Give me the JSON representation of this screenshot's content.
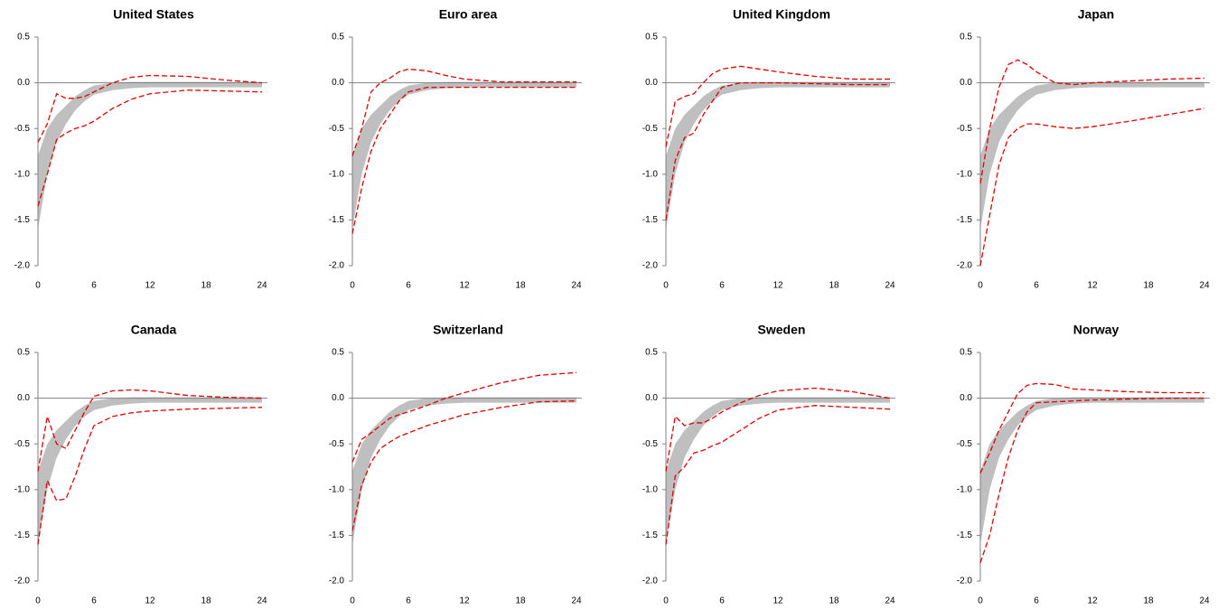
{
  "chart_data": [
    {
      "type": "line",
      "title": "United States",
      "x": [
        0,
        1,
        2,
        3,
        4,
        5,
        6,
        8,
        10,
        12,
        16,
        20,
        24
      ],
      "xlim": [
        0,
        24
      ],
      "xticks": [
        0,
        6,
        12,
        18,
        24
      ],
      "ylim": [
        -2,
        0.5
      ],
      "yticks": [
        {
          "value": -2,
          "label": "-2.0"
        },
        -1.5,
        {
          "value": -1,
          "label": "-1.0"
        },
        -0.5,
        {
          "value": 0,
          "label": "0.0"
        },
        0.5
      ],
      "band": {
        "color": "#bfbfbf",
        "lower": [
          -1.6,
          -1.0,
          -0.65,
          -0.45,
          -0.3,
          -0.2,
          -0.13,
          -0.08,
          -0.06,
          -0.05,
          -0.05,
          -0.05,
          -0.05
        ],
        "upper": [
          -0.8,
          -0.5,
          -0.35,
          -0.25,
          -0.15,
          -0.08,
          -0.03,
          0,
          0.01,
          0.01,
          0.01,
          0.01,
          0.01
        ]
      },
      "series": [
        {
          "color": "#e00000",
          "values": [
            -0.65,
            -0.45,
            -0.12,
            -0.17,
            -0.17,
            -0.15,
            -0.1,
            0.0,
            0.06,
            0.08,
            0.07,
            0.03,
            0.0
          ]
        },
        {
          "color": "#e00000",
          "values": [
            -1.35,
            -1.0,
            -0.62,
            -0.55,
            -0.5,
            -0.47,
            -0.42,
            -0.28,
            -0.18,
            -0.12,
            -0.08,
            -0.09,
            -0.1
          ]
        }
      ]
    },
    {
      "type": "line",
      "title": "Euro area",
      "x": [
        0,
        1,
        2,
        3,
        4,
        5,
        6,
        8,
        10,
        12,
        16,
        20,
        24
      ],
      "xlim": [
        0,
        24
      ],
      "xticks": [
        0,
        6,
        12,
        18,
        24
      ],
      "ylim": [
        -2,
        0.5
      ],
      "yticks": [
        {
          "value": -2,
          "label": "-2.0"
        },
        -1.5,
        {
          "value": -1,
          "label": "-1.0"
        },
        -0.5,
        {
          "value": 0,
          "label": "0.0"
        },
        0.5
      ],
      "band": {
        "color": "#bfbfbf",
        "lower": [
          -1.6,
          -1.0,
          -0.65,
          -0.45,
          -0.3,
          -0.2,
          -0.13,
          -0.08,
          -0.06,
          -0.05,
          -0.05,
          -0.05,
          -0.05
        ],
        "upper": [
          -0.8,
          -0.5,
          -0.35,
          -0.25,
          -0.15,
          -0.08,
          -0.03,
          0,
          0.01,
          0.01,
          0.01,
          0.01,
          0.01
        ]
      },
      "series": [
        {
          "color": "#e00000",
          "values": [
            -0.8,
            -0.5,
            -0.1,
            0.0,
            0.05,
            0.12,
            0.15,
            0.13,
            0.08,
            0.04,
            0.01,
            0.01,
            0.01
          ]
        },
        {
          "color": "#e00000",
          "values": [
            -1.65,
            -1.15,
            -0.75,
            -0.5,
            -0.35,
            -0.2,
            -0.1,
            -0.05,
            -0.05,
            -0.05,
            -0.05,
            -0.05,
            -0.05
          ]
        }
      ]
    },
    {
      "type": "line",
      "title": "United Kingdom",
      "x": [
        0,
        1,
        2,
        3,
        4,
        5,
        6,
        8,
        10,
        12,
        16,
        20,
        24
      ],
      "xlim": [
        0,
        24
      ],
      "xticks": [
        0,
        6,
        12,
        18,
        24
      ],
      "ylim": [
        -2,
        0.5
      ],
      "yticks": [
        {
          "value": -2,
          "label": "-2.0"
        },
        -1.5,
        {
          "value": -1,
          "label": "-1.0"
        },
        -0.5,
        {
          "value": 0,
          "label": "0.0"
        },
        0.5
      ],
      "band": {
        "color": "#bfbfbf",
        "lower": [
          -1.6,
          -1.0,
          -0.65,
          -0.45,
          -0.3,
          -0.2,
          -0.13,
          -0.08,
          -0.06,
          -0.05,
          -0.05,
          -0.05,
          -0.05
        ],
        "upper": [
          -0.8,
          -0.5,
          -0.35,
          -0.25,
          -0.15,
          -0.08,
          -0.03,
          0,
          0.01,
          0.01,
          0.01,
          0.01,
          0.01
        ]
      },
      "series": [
        {
          "color": "#e00000",
          "values": [
            -0.7,
            -0.2,
            -0.15,
            -0.12,
            0.0,
            0.1,
            0.15,
            0.18,
            0.15,
            0.12,
            0.07,
            0.04,
            0.04
          ]
        },
        {
          "color": "#e00000",
          "values": [
            -1.5,
            -0.85,
            -0.6,
            -0.55,
            -0.35,
            -0.2,
            -0.05,
            0.0,
            0.0,
            0.0,
            -0.01,
            -0.02,
            -0.02
          ]
        }
      ]
    },
    {
      "type": "line",
      "title": "Japan",
      "x": [
        0,
        1,
        2,
        3,
        4,
        5,
        6,
        8,
        10,
        12,
        16,
        20,
        24
      ],
      "xlim": [
        0,
        24
      ],
      "xticks": [
        0,
        6,
        12,
        18,
        24
      ],
      "ylim": [
        -2,
        0.5
      ],
      "yticks": [
        {
          "value": -2,
          "label": "-2.0"
        },
        -1.5,
        {
          "value": -1,
          "label": "-1.0"
        },
        -0.5,
        {
          "value": 0,
          "label": "0.0"
        },
        0.5
      ],
      "band": {
        "color": "#bfbfbf",
        "lower": [
          -1.6,
          -1.0,
          -0.65,
          -0.45,
          -0.3,
          -0.2,
          -0.13,
          -0.08,
          -0.06,
          -0.05,
          -0.05,
          -0.05,
          -0.05
        ],
        "upper": [
          -0.8,
          -0.5,
          -0.35,
          -0.25,
          -0.15,
          -0.08,
          -0.03,
          0,
          0.01,
          0.01,
          0.01,
          0.01,
          0.01
        ]
      },
      "series": [
        {
          "color": "#e00000",
          "values": [
            -1.1,
            -0.5,
            -0.05,
            0.2,
            0.25,
            0.2,
            0.12,
            0.0,
            -0.02,
            0.0,
            0.02,
            0.04,
            0.05
          ]
        },
        {
          "color": "#e00000",
          "values": [
            -2.0,
            -1.45,
            -0.9,
            -0.6,
            -0.5,
            -0.45,
            -0.45,
            -0.48,
            -0.5,
            -0.48,
            -0.42,
            -0.35,
            -0.28
          ]
        }
      ]
    },
    {
      "type": "line",
      "title": "Canada",
      "x": [
        0,
        1,
        2,
        3,
        4,
        5,
        6,
        8,
        10,
        12,
        16,
        20,
        24
      ],
      "xlim": [
        0,
        24
      ],
      "xticks": [
        0,
        6,
        12,
        18,
        24
      ],
      "ylim": [
        -2,
        0.5
      ],
      "yticks": [
        {
          "value": -2,
          "label": "-2.0"
        },
        -1.5,
        {
          "value": -1,
          "label": "-1.0"
        },
        -0.5,
        {
          "value": 0,
          "label": "0.0"
        },
        0.5
      ],
      "band": {
        "color": "#bfbfbf",
        "lower": [
          -1.6,
          -1.0,
          -0.65,
          -0.45,
          -0.3,
          -0.2,
          -0.13,
          -0.08,
          -0.06,
          -0.05,
          -0.05,
          -0.05,
          -0.05
        ],
        "upper": [
          -0.8,
          -0.5,
          -0.35,
          -0.25,
          -0.15,
          -0.08,
          -0.03,
          0,
          0.01,
          0.01,
          0.01,
          0.01,
          0.01
        ]
      },
      "series": [
        {
          "color": "#e00000",
          "values": [
            -0.8,
            -0.2,
            -0.5,
            -0.55,
            -0.35,
            -0.15,
            0.02,
            0.08,
            0.09,
            0.08,
            0.03,
            0.01,
            0.0
          ]
        },
        {
          "color": "#e00000",
          "values": [
            -1.6,
            -0.9,
            -1.12,
            -1.1,
            -0.85,
            -0.55,
            -0.3,
            -0.2,
            -0.16,
            -0.14,
            -0.12,
            -0.11,
            -0.1
          ]
        }
      ]
    },
    {
      "type": "line",
      "title": "Switzerland",
      "x": [
        0,
        1,
        2,
        3,
        4,
        5,
        6,
        8,
        10,
        12,
        16,
        20,
        24
      ],
      "xlim": [
        0,
        24
      ],
      "xticks": [
        0,
        6,
        12,
        18,
        24
      ],
      "ylim": [
        -2,
        0.5
      ],
      "yticks": [
        {
          "value": -2,
          "label": "-2.0"
        },
        -1.5,
        {
          "value": -1,
          "label": "-1.0"
        },
        -0.5,
        {
          "value": 0,
          "label": "0.0"
        },
        0.5
      ],
      "band": {
        "color": "#bfbfbf",
        "lower": [
          -1.6,
          -1.0,
          -0.65,
          -0.45,
          -0.3,
          -0.2,
          -0.13,
          -0.08,
          -0.06,
          -0.05,
          -0.05,
          -0.05,
          -0.05
        ],
        "upper": [
          -0.8,
          -0.5,
          -0.35,
          -0.25,
          -0.15,
          -0.08,
          -0.03,
          0,
          0.01,
          0.01,
          0.01,
          0.01,
          0.01
        ]
      },
      "series": [
        {
          "color": "#e00000",
          "values": [
            -0.7,
            -0.45,
            -0.38,
            -0.3,
            -0.22,
            -0.18,
            -0.15,
            -0.08,
            0.0,
            0.06,
            0.17,
            0.25,
            0.28
          ]
        },
        {
          "color": "#e00000",
          "values": [
            -1.45,
            -0.95,
            -0.7,
            -0.55,
            -0.48,
            -0.42,
            -0.38,
            -0.3,
            -0.24,
            -0.18,
            -0.1,
            -0.04,
            -0.03
          ]
        }
      ]
    },
    {
      "type": "line",
      "title": "Sweden",
      "x": [
        0,
        1,
        2,
        3,
        4,
        5,
        6,
        8,
        10,
        12,
        16,
        20,
        24
      ],
      "xlim": [
        0,
        24
      ],
      "xticks": [
        0,
        6,
        12,
        18,
        24
      ],
      "ylim": [
        -2,
        0.5
      ],
      "yticks": [
        {
          "value": -2,
          "label": "-2.0"
        },
        -1.5,
        {
          "value": -1,
          "label": "-1.0"
        },
        -0.5,
        {
          "value": 0,
          "label": "0.0"
        },
        0.5
      ],
      "band": {
        "color": "#bfbfbf",
        "lower": [
          -1.6,
          -1.0,
          -0.65,
          -0.45,
          -0.3,
          -0.2,
          -0.13,
          -0.08,
          -0.06,
          -0.05,
          -0.05,
          -0.05,
          -0.05
        ],
        "upper": [
          -0.8,
          -0.5,
          -0.35,
          -0.25,
          -0.15,
          -0.08,
          -0.03,
          0,
          0.01,
          0.01,
          0.01,
          0.01,
          0.01
        ]
      },
      "series": [
        {
          "color": "#e00000",
          "values": [
            -0.8,
            -0.2,
            -0.3,
            -0.27,
            -0.27,
            -0.22,
            -0.15,
            -0.05,
            0.03,
            0.08,
            0.11,
            0.07,
            0.0
          ]
        },
        {
          "color": "#e00000",
          "values": [
            -1.6,
            -0.85,
            -0.75,
            -0.6,
            -0.57,
            -0.52,
            -0.48,
            -0.35,
            -0.22,
            -0.13,
            -0.08,
            -0.1,
            -0.12
          ]
        }
      ]
    },
    {
      "type": "line",
      "title": "Norway",
      "x": [
        0,
        1,
        2,
        3,
        4,
        5,
        6,
        8,
        10,
        12,
        16,
        20,
        24
      ],
      "xlim": [
        0,
        24
      ],
      "xticks": [
        0,
        6,
        12,
        18,
        24
      ],
      "ylim": [
        -2,
        0.5
      ],
      "yticks": [
        {
          "value": -2,
          "label": "-2.0"
        },
        -1.5,
        {
          "value": -1,
          "label": "-1.0"
        },
        -0.5,
        {
          "value": 0,
          "label": "0.0"
        },
        0.5
      ],
      "band": {
        "color": "#bfbfbf",
        "lower": [
          -1.6,
          -1.0,
          -0.65,
          -0.45,
          -0.3,
          -0.2,
          -0.13,
          -0.08,
          -0.06,
          -0.05,
          -0.05,
          -0.05,
          -0.05
        ],
        "upper": [
          -0.8,
          -0.5,
          -0.35,
          -0.25,
          -0.15,
          -0.08,
          -0.03,
          0,
          0.01,
          0.01,
          0.01,
          0.01,
          0.01
        ]
      },
      "series": [
        {
          "color": "#e00000",
          "values": [
            -0.82,
            -0.6,
            -0.35,
            -0.15,
            0.05,
            0.14,
            0.16,
            0.15,
            0.1,
            0.09,
            0.07,
            0.06,
            0.06
          ]
        },
        {
          "color": "#e00000",
          "values": [
            -1.8,
            -1.5,
            -1.05,
            -0.65,
            -0.35,
            -0.15,
            -0.05,
            -0.04,
            -0.03,
            -0.02,
            -0.01,
            0,
            0
          ]
        }
      ]
    }
  ]
}
